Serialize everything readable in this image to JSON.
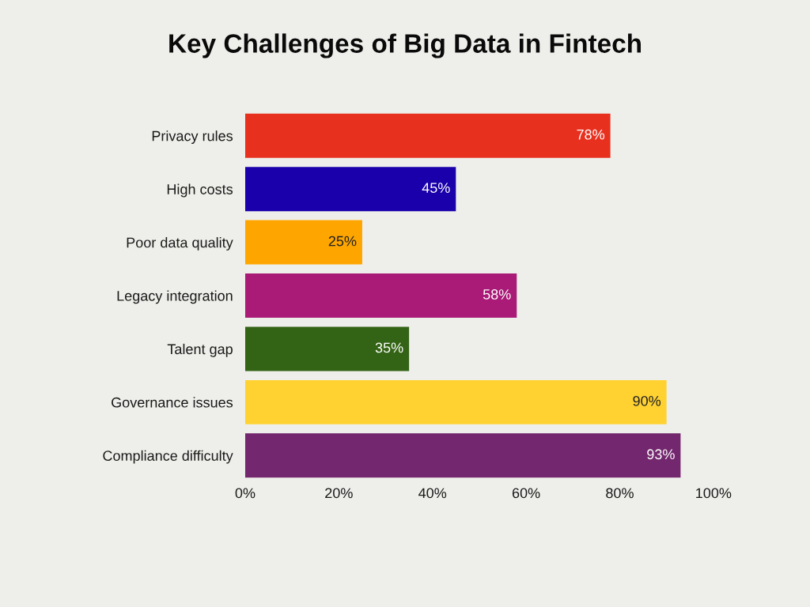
{
  "chart_data": {
    "type": "bar",
    "orientation": "horizontal",
    "title": "Key Challenges of Big Data in Fintech",
    "categories": [
      "Privacy rules",
      "High costs",
      "Poor data quality",
      "Legacy integration",
      "Talent gap",
      "Governance issues",
      "Compliance difficulty"
    ],
    "values": [
      78,
      45,
      25,
      58,
      35,
      90,
      93
    ],
    "colors": [
      "#e8301f",
      "#1a00ab",
      "#fea500",
      "#a91b77",
      "#336314",
      "#ffd231",
      "#73276e"
    ],
    "value_labels": [
      "78%",
      "45%",
      "25%",
      "58%",
      "35%",
      "90%",
      "93%"
    ],
    "xlim": [
      0,
      100
    ],
    "xticks": [
      {
        "value": 0,
        "label": "0%"
      },
      {
        "value": 20,
        "label": "20%"
      },
      {
        "value": 40,
        "label": "40%"
      },
      {
        "value": 60,
        "label": "60%"
      },
      {
        "value": 80,
        "label": "80%"
      },
      {
        "value": 100,
        "label": "100%"
      }
    ]
  }
}
